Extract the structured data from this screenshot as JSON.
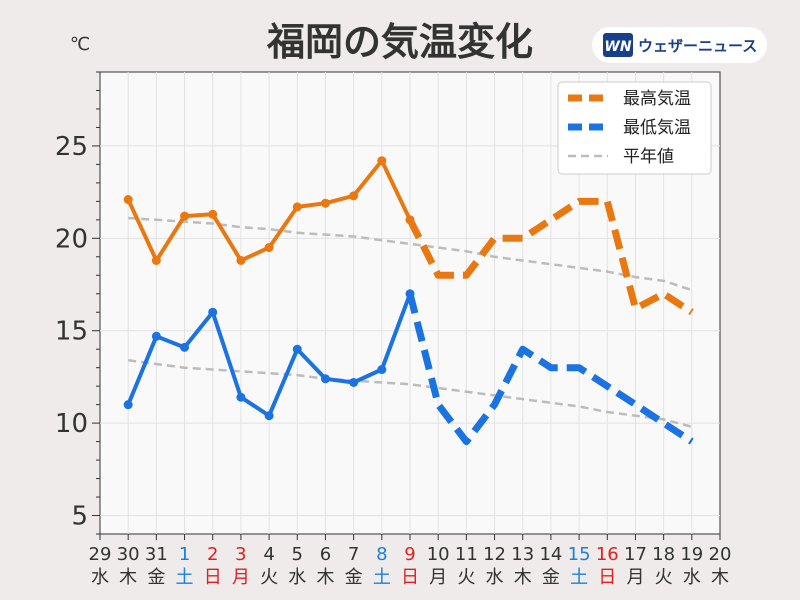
{
  "title": "福岡の気温変化",
  "logo": {
    "name": "ウェザーニュース",
    "mark": "WN"
  },
  "chart_data": {
    "type": "line",
    "unit": "℃",
    "ylim": [
      4,
      29
    ],
    "yticks": [
      5,
      10,
      15,
      20,
      25
    ],
    "grid": true,
    "legend_position": "top-right",
    "x": [
      {
        "day": "29",
        "dow": "水",
        "type": "weekday"
      },
      {
        "day": "30",
        "dow": "木",
        "type": "weekday"
      },
      {
        "day": "31",
        "dow": "金",
        "type": "weekday"
      },
      {
        "day": "1",
        "dow": "土",
        "type": "sat"
      },
      {
        "day": "2",
        "dow": "日",
        "type": "sun"
      },
      {
        "day": "3",
        "dow": "月",
        "type": "sun"
      },
      {
        "day": "4",
        "dow": "火",
        "type": "weekday"
      },
      {
        "day": "5",
        "dow": "水",
        "type": "weekday"
      },
      {
        "day": "6",
        "dow": "木",
        "type": "weekday"
      },
      {
        "day": "7",
        "dow": "金",
        "type": "weekday"
      },
      {
        "day": "8",
        "dow": "土",
        "type": "sat"
      },
      {
        "day": "9",
        "dow": "日",
        "type": "sun"
      },
      {
        "day": "10",
        "dow": "月",
        "type": "weekday"
      },
      {
        "day": "11",
        "dow": "火",
        "type": "weekday"
      },
      {
        "day": "12",
        "dow": "水",
        "type": "weekday"
      },
      {
        "day": "13",
        "dow": "木",
        "type": "weekday"
      },
      {
        "day": "14",
        "dow": "金",
        "type": "weekday"
      },
      {
        "day": "15",
        "dow": "土",
        "type": "sat"
      },
      {
        "day": "16",
        "dow": "日",
        "type": "sun"
      },
      {
        "day": "17",
        "dow": "月",
        "type": "weekday"
      },
      {
        "day": "18",
        "dow": "火",
        "type": "weekday"
      },
      {
        "day": "19",
        "dow": "水",
        "type": "weekday"
      },
      {
        "day": "20",
        "dow": "木",
        "type": "weekday"
      }
    ],
    "observed_through": "9",
    "series": [
      {
        "name": "最高気温",
        "color": "#e8780f",
        "values": [
          null,
          22.1,
          18.8,
          21.2,
          21.3,
          18.8,
          19.5,
          21.7,
          21.9,
          22.3,
          24.2,
          21.0,
          18.0,
          18.0,
          20.0,
          20.0,
          21.0,
          22.0,
          22.0,
          16.2,
          17.0,
          16.0,
          null
        ]
      },
      {
        "name": "最低気温",
        "color": "#1a73e0",
        "values": [
          null,
          11.0,
          14.7,
          14.1,
          16.0,
          11.4,
          10.4,
          14.0,
          12.4,
          12.2,
          12.9,
          17.0,
          11.0,
          9.0,
          11.0,
          14.0,
          13.0,
          13.0,
          12.0,
          11.0,
          10.0,
          9.0,
          null
        ]
      },
      {
        "name": "平年値",
        "color": "#bcbcbc",
        "high_values": [
          null,
          21.1,
          21.0,
          20.9,
          20.8,
          20.6,
          20.5,
          20.3,
          20.2,
          20.1,
          19.9,
          19.7,
          19.5,
          19.3,
          19.0,
          18.8,
          18.6,
          18.4,
          18.2,
          17.9,
          17.7,
          17.2,
          null
        ],
        "low_values": [
          null,
          13.4,
          13.2,
          13.0,
          12.9,
          12.8,
          12.7,
          12.6,
          12.4,
          12.3,
          12.2,
          12.1,
          11.9,
          11.7,
          11.5,
          11.3,
          11.1,
          10.9,
          10.6,
          10.4,
          10.2,
          9.8,
          null
        ]
      }
    ],
    "day_colors": {
      "weekday": "#333333",
      "sat": "#1a7fe0",
      "sun": "#e02020"
    }
  }
}
